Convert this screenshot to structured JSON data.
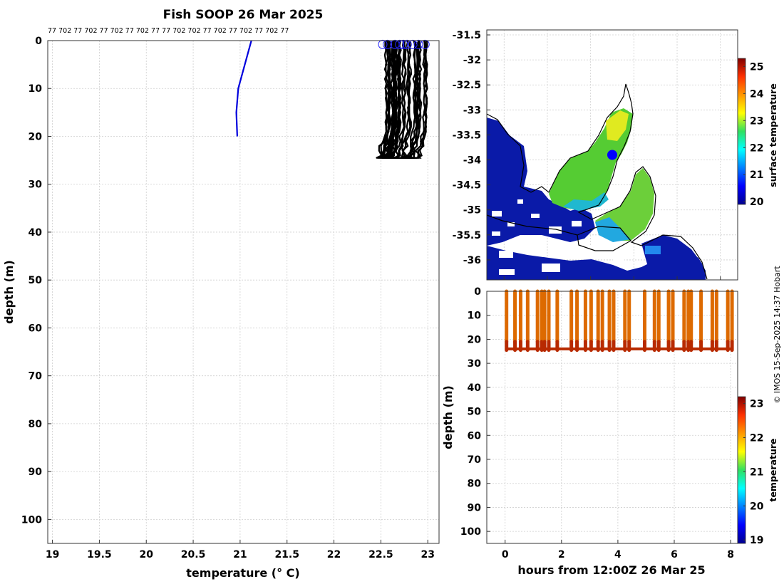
{
  "figure": {
    "title": "Fish SOOP 26 Mar 2025",
    "credit": "© IMOS 15-Sep-2025 14:37 Hobart",
    "colors": {
      "profile_lines": "#000000",
      "highlight_profile": "#0000dd",
      "start_markers": "#2222ff",
      "vessel_marker": "#0000ff",
      "axis": "#333333"
    }
  },
  "chart_data": [
    {
      "type": "line",
      "name": "temperature-profiles",
      "xlabel": "temperature (° C)",
      "ylabel": "depth (m)",
      "xlim": [
        18.95,
        23.12
      ],
      "ylim": [
        105,
        0
      ],
      "xticks": [
        19,
        19.5,
        20,
        20.5,
        21,
        21.5,
        22,
        22.5,
        23
      ],
      "xtick_labels": [
        "19",
        "19.5",
        "20",
        "20.5",
        "21",
        "21.5",
        "22",
        "22.5",
        "23"
      ],
      "yticks": [
        0,
        10,
        20,
        30,
        40,
        50,
        60,
        70,
        80,
        90,
        100
      ],
      "grid": true,
      "top_labels": "77 702 77 702 77 702 77 702 77 77 702 702 77 702 77 702 77 702 77",
      "highlight_profile": {
        "x": [
          21.12,
          21.05,
          20.98,
          20.96,
          20.97
        ],
        "y": [
          0,
          5,
          10,
          15,
          20
        ]
      },
      "profile_count": 40,
      "profile_temperature_range": [
        22.5,
        23.02
      ],
      "profile_depth_range": [
        0,
        25
      ]
    },
    {
      "type": "heatmap",
      "name": "surface-temperature-map",
      "xlim": [
        134.6,
        140.4
      ],
      "ylim": [
        -36.4,
        -31.4
      ],
      "xticks": [
        135,
        136,
        137,
        138,
        139,
        140
      ],
      "yticks": [
        -31.5,
        -32,
        -32.5,
        -33,
        -33.5,
        -34,
        -34.5,
        -35,
        -35.5,
        -36
      ],
      "ytick_labels": [
        "-31.5",
        "-32",
        "-32.5",
        "-33",
        "-33.5",
        "-34",
        "-34.5",
        "-35",
        "-35.5",
        "-36"
      ],
      "vessel_position": {
        "lon": 137.5,
        "lat": -33.9
      },
      "colorbar": {
        "label": "surface temperature",
        "min": 19.9,
        "max": 25.3,
        "ticks": [
          20,
          21,
          22,
          23,
          24,
          25
        ]
      },
      "grid": true
    },
    {
      "type": "scatter",
      "name": "temperature-time-depth",
      "xlabel": "hours from 12:00Z 26 Mar 25",
      "ylabel": "depth (m)",
      "xlim": [
        -0.65,
        8.25
      ],
      "ylim": [
        105,
        0
      ],
      "xticks": [
        0,
        2,
        4,
        6,
        8
      ],
      "yticks": [
        0,
        10,
        20,
        30,
        40,
        50,
        60,
        70,
        80,
        90,
        100
      ],
      "grid": true,
      "cast_times": [
        0.05,
        0.35,
        0.55,
        0.8,
        1.15,
        1.3,
        1.4,
        1.55,
        1.85,
        2.35,
        2.55,
        2.85,
        3.05,
        3.3,
        3.45,
        3.7,
        3.85,
        4.25,
        4.4,
        4.95,
        5.3,
        5.45,
        5.8,
        5.95,
        6.35,
        6.5,
        6.6,
        6.95,
        7.35,
        7.5,
        7.9,
        8.05
      ],
      "cast_depth_max": 24,
      "colorbar": {
        "label": "temperature",
        "min": 18.9,
        "max": 23.2,
        "ticks": [
          19,
          20,
          21,
          22,
          23
        ]
      }
    }
  ]
}
